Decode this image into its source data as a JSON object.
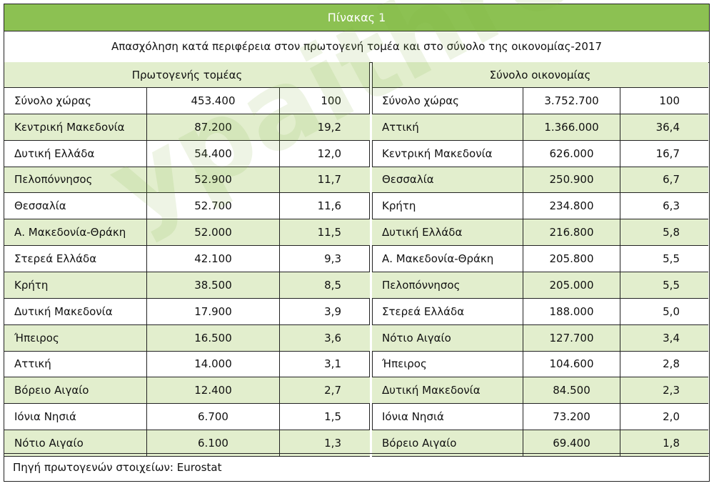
{
  "title": "Πίνακας 1",
  "subtitle": "Απασχόληση κατά περιφέρεια στον πρωτογενή τομέα και στο σύνολο της οικονομίας-2017",
  "left_section": {
    "header": "Πρωτογενής τομέας",
    "rows": [
      {
        "region": "Σύνολο χώρας",
        "value": "453.400",
        "pct": "100"
      },
      {
        "region": "Κεντρική Μακεδονία",
        "value": "87.200",
        "pct": "19,2"
      },
      {
        "region": "Δυτική Ελλάδα",
        "value": "54.400",
        "pct": "12,0"
      },
      {
        "region": "Πελοπόννησος",
        "value": "52.900",
        "pct": "11,7"
      },
      {
        "region": "Θεσσαλία",
        "value": "52.700",
        "pct": "11,6"
      },
      {
        "region": "Α. Μακεδονία-Θράκη",
        "value": "52.000",
        "pct": "11,5"
      },
      {
        "region": "Στερεά Ελλάδα",
        "value": "42.100",
        "pct": "9,3"
      },
      {
        "region": "Κρήτη",
        "value": "38.500",
        "pct": "8,5"
      },
      {
        "region": "Δυτική Μακεδονία",
        "value": "17.900",
        "pct": "3,9"
      },
      {
        "region": "Ήπειρος",
        "value": "16.500",
        "pct": "3,6"
      },
      {
        "region": "Αττική",
        "value": "14.000",
        "pct": "3,1"
      },
      {
        "region": "Βόρειο Αιγαίο",
        "value": "12.400",
        "pct": "2,7"
      },
      {
        "region": "Ιόνια Νησιά",
        "value": "6.700",
        "pct": "1,5"
      },
      {
        "region": "Νότιο Αιγαίο",
        "value": "6.100",
        "pct": "1,3"
      }
    ]
  },
  "right_section": {
    "header": "Σύνολο οικονομίας",
    "rows": [
      {
        "region": "Σύνολο χώρας",
        "value": "3.752.700",
        "pct": "100"
      },
      {
        "region": "Αττική",
        "value": "1.366.000",
        "pct": "36,4"
      },
      {
        "region": "Κεντρική Μακεδονία",
        "value": "626.000",
        "pct": "16,7"
      },
      {
        "region": "Θεσσαλία",
        "value": "250.900",
        "pct": "6,7"
      },
      {
        "region": "Κρήτη",
        "value": "234.800",
        "pct": "6,3"
      },
      {
        "region": "Δυτική Ελλάδα",
        "value": "216.800",
        "pct": "5,8"
      },
      {
        "region": "Α. Μακεδονία-Θράκη",
        "value": "205.800",
        "pct": "5,5"
      },
      {
        "region": "Πελοπόννησος",
        "value": "205.000",
        "pct": "5,5"
      },
      {
        "region": "Στερεά Ελλάδα",
        "value": "188.000",
        "pct": "5,0"
      },
      {
        "region": "Νότιο Αιγαίο",
        "value": "127.700",
        "pct": "3,4"
      },
      {
        "region": "Ήπειρος",
        "value": "104.600",
        "pct": "2,8"
      },
      {
        "region": "Δυτική Μακεδονία",
        "value": "84.500",
        "pct": "2,3"
      },
      {
        "region": "Ιόνια Νησιά",
        "value": "73.200",
        "pct": "2,0"
      },
      {
        "region": "Βόρειο Αιγαίο",
        "value": "69.400",
        "pct": "1,8"
      }
    ]
  },
  "footer": "Πηγή πρωτογενών στοιχείων: Eurostat",
  "watermark": "ypaithros.gr",
  "colors": {
    "accent": "#8cc152",
    "row_shade": "#e2eecd",
    "border": "#222222"
  }
}
